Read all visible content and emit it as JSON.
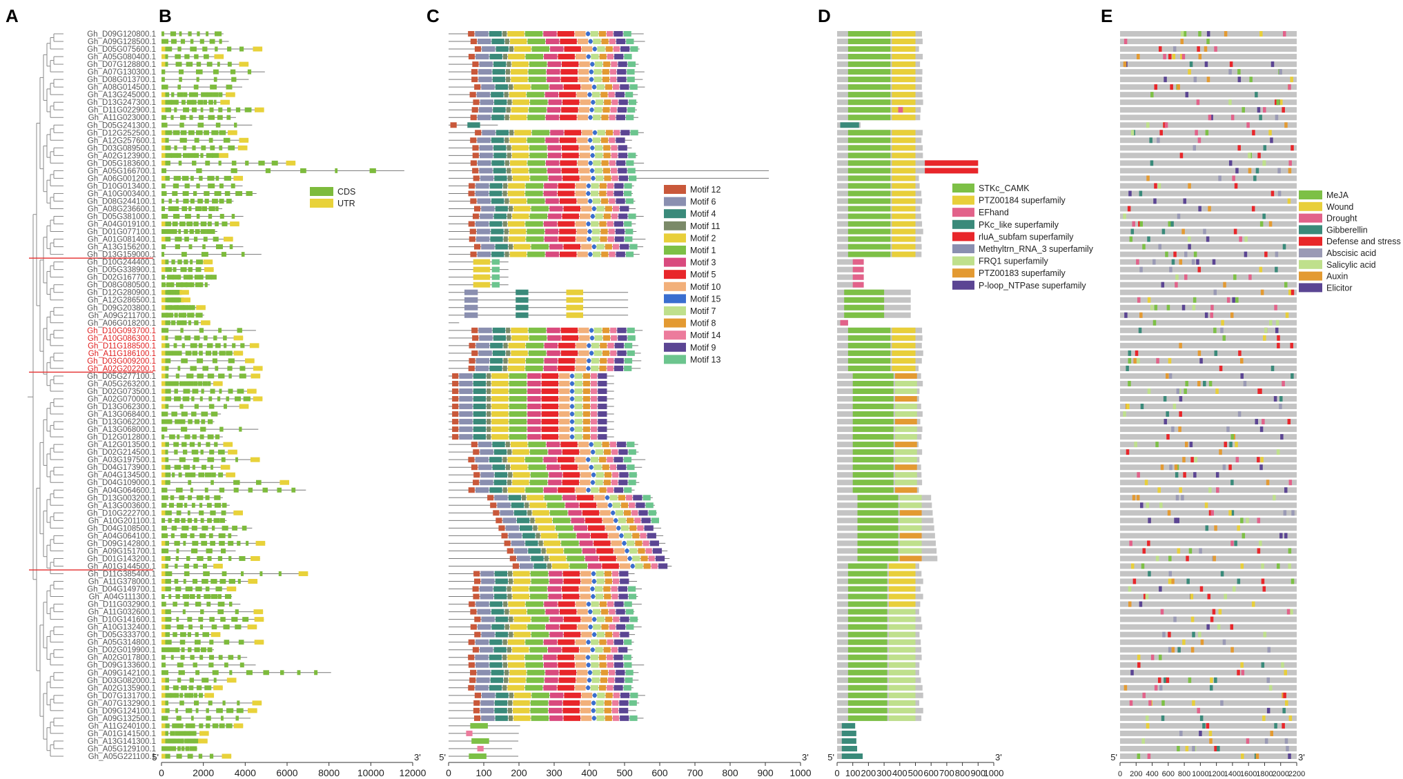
{
  "panels": {
    "a": "A",
    "b": "B",
    "c": "C",
    "d": "D",
    "e": "E"
  },
  "genes": [
    "Gh_D09G120800.1",
    "Gh_A09G128500.1",
    "Gh_D05G075600.1",
    "Gh_A05G080400.1",
    "Gh_D07G128800.1",
    "Gh_A07G130300.1",
    "Gh_D08G013700.1",
    "Gh_A08G014500.1",
    "Gh_A13G245000.1",
    "Gh_D13G247300.1",
    "Gh_D11G022900.1",
    "Gh_A11G023000.1",
    "Gh_D05G241300.1",
    "Gh_D12G252500.1",
    "Gh_A12G257600.1",
    "Gh_D03G089500.1",
    "Gh_A02G123900.1",
    "Gh_D05G183600.1",
    "Gh_A05G166700.1",
    "Gh_A06G001200.1",
    "Gh_D10G013400.1",
    "Gh_A10G003400.1",
    "Gh_D08G244100.1",
    "Gh_A08G236600.1",
    "Gh_D05G381000.1",
    "Gh_A04G019100.1",
    "Gh_D01G077100.1",
    "Gh_A01G081400.1",
    "Gh_A13G156200.1",
    "Gh_D13G159000.1",
    "Gh_D10G244400.1",
    "Gh_D05G338900.1",
    "Gh_D02G167700.1",
    "Gh_D08G080500.1",
    "Gh_D12G280900.1",
    "Gh_A12G286500.1",
    "Gh_D09G203800.1",
    "Gh_A09G211700.1",
    "Gh_A06G018200.1",
    "Gh_D10G093700.1",
    "Gh_A10G086300.1",
    "Gh_D11G188500.1",
    "Gh_A11G186100.1",
    "Gh_D03G009200.1",
    "Gh_A02G202200.1",
    "Gh_D05G277100.1",
    "Gh_A05G263200.1",
    "Gh_D02G073500.1",
    "Gh_A02G070000.1",
    "Gh_D13G062300.1",
    "Gh_A13G068400.1",
    "Gh_D13G062200.1",
    "Gh_A13G068000.1",
    "Gh_D12G012800.1",
    "Gh_A12G013500.1",
    "Gh_D02G214500.1",
    "Gh_A03G197500.1",
    "Gh_D04G173900.1",
    "Gh_A04G134500.1",
    "Gh_D04G109000.1",
    "Gh_A04G064600.1",
    "Gh_D13G003200.1",
    "Gh_A13G003600.1",
    "Gh_D10G222700.1",
    "Gh_A10G201100.1",
    "Gh_D04G108500.1",
    "Gh_A04G064100.1",
    "Gh_D09G142800.1",
    "Gh_A09G151700.1",
    "Gh_D01G143200.1",
    "Gh_A01G144500.1",
    "Gh_D11G385400.1",
    "Gh_A11G378000.1",
    "Gh_D04G149700.1",
    "Gh_A04G111300.1",
    "Gh_D11G032900.1",
    "Gh_A11G032600.1",
    "Gh_D10G141600.1",
    "Gh_A10G132400.1",
    "Gh_D05G333700.1",
    "Gh_A05G314800.1",
    "Gh_D02G019900.1",
    "Gh_A02G017800.1",
    "Gh_D09G133600.1",
    "Gh_A09G142100.1",
    "Gh_D03G082000.1",
    "Gh_A02G135900.1",
    "Gh_D07G131700.1",
    "Gh_A07G132900.1",
    "Gh_D09G124100.1",
    "Gh_A09G132500.1",
    "Gh_A11G240100.1",
    "Gh_A01G141500.1",
    "Gh_A13G141300.1",
    "Gh_A05G129100.1",
    "Gh_A05G221100.1"
  ],
  "red_genes": [
    39,
    40,
    41,
    42,
    43,
    44
  ],
  "axes": {
    "b": {
      "ticks": [
        "0",
        "2000",
        "4000",
        "6000",
        "8000",
        "10000",
        "12000"
      ],
      "max": 12000,
      "left": "5'",
      "right": "3'"
    },
    "c": {
      "ticks": [
        "0",
        "100",
        "200",
        "300",
        "400",
        "500",
        "600",
        "700",
        "800",
        "900",
        "1000"
      ],
      "max": 1000,
      "left": "5'",
      "right": "3'"
    },
    "d": {
      "ticks": [
        "0",
        "100",
        "200",
        "300",
        "400",
        "500",
        "600",
        "700",
        "800",
        "900",
        "1000"
      ],
      "max": 1000,
      "left": "5'",
      "right": "3'"
    },
    "e": {
      "ticks": [
        "0",
        "200",
        "400",
        "600",
        "800",
        "1000",
        "1200",
        "1400",
        "1600",
        "1800",
        "2000",
        "2200"
      ],
      "max": 2200,
      "left": "5'",
      "right": "3'"
    }
  },
  "legend_b": [
    {
      "label": "CDS",
      "color": "#7dbb3c"
    },
    {
      "label": "UTR",
      "color": "#e8d23a"
    }
  ],
  "legend_c": [
    {
      "label": "Motif 12",
      "color": "#c9583a"
    },
    {
      "label": "Motif 6",
      "color": "#8a8fb0"
    },
    {
      "label": "Motif 4",
      "color": "#3a8a7a"
    },
    {
      "label": "Motif 11",
      "color": "#7b8a68"
    },
    {
      "label": "Motif 2",
      "color": "#e8cf3a"
    },
    {
      "label": "Motif 1",
      "color": "#7dc046"
    },
    {
      "label": "Motif 3",
      "color": "#d94a7e"
    },
    {
      "label": "Motif 5",
      "color": "#e8262a"
    },
    {
      "label": "Motif 10",
      "color": "#f2b07a"
    },
    {
      "label": "Motif 15",
      "color": "#3a6ecf"
    },
    {
      "label": "Motif 7",
      "color": "#bfe08c"
    },
    {
      "label": "Motif 8",
      "color": "#e39a32"
    },
    {
      "label": "Motif 14",
      "color": "#ec7b9c"
    },
    {
      "label": "Motif 9",
      "color": "#5b4593"
    },
    {
      "label": "Motif 13",
      "color": "#6cc58e"
    }
  ],
  "legend_d": [
    {
      "label": "STKc_CAMK",
      "color": "#7dc046"
    },
    {
      "label": "PTZ00184 superfamily",
      "color": "#e8cf3a"
    },
    {
      "label": "EFhand",
      "color": "#e2628a"
    },
    {
      "label": "PKc_like superfamily",
      "color": "#3a8a7a"
    },
    {
      "label": "rluA_subfam superfamily",
      "color": "#e8262a"
    },
    {
      "label": "Methyltrn_RNA_3 superfamily",
      "color": "#8a8fb0"
    },
    {
      "label": "FRQ1 superfamily",
      "color": "#bfe08c"
    },
    {
      "label": "PTZ00183 superfamily",
      "color": "#e39a32"
    },
    {
      "label": "P-loop_NTPase superfamily",
      "color": "#5b4593"
    }
  ],
  "legend_e": [
    {
      "label": "MeJA",
      "color": "#7dc046"
    },
    {
      "label": "Wound",
      "color": "#e8cf3a"
    },
    {
      "label": "Drought",
      "color": "#e2628a"
    },
    {
      "label": "Gibberellin",
      "color": "#3a8a7a"
    },
    {
      "label": "Defense and stress",
      "color": "#e8262a"
    },
    {
      "label": "Abscisic acid",
      "color": "#9a9ab5"
    },
    {
      "label": "Salicylic acid",
      "color": "#bfe08c"
    },
    {
      "label": "Auxin",
      "color": "#e39a32"
    },
    {
      "label": "Elicitor",
      "color": "#5b4593"
    }
  ]
}
